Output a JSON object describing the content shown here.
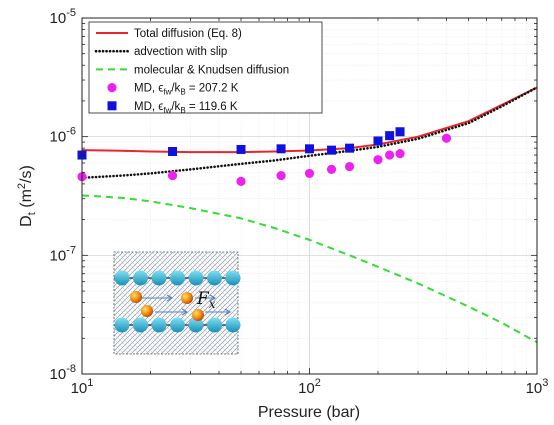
{
  "chart_data": {
    "type": "line",
    "xlabel": "Pressure (bar)",
    "ylabel": "D_t (m^2/s)",
    "xscale": "log",
    "yscale": "log",
    "xlim": [
      10,
      1000
    ],
    "ylim": [
      1e-08,
      1e-05
    ],
    "grid": true,
    "legend_position": "top-left",
    "x_ticks": [
      {
        "value": 10,
        "base": "10",
        "exp": "1"
      },
      {
        "value": 100,
        "base": "10",
        "exp": "2"
      },
      {
        "value": 1000,
        "base": "10",
        "exp": "3"
      }
    ],
    "y_ticks": [
      {
        "value": 1e-08,
        "base": "10",
        "exp": "-8"
      },
      {
        "value": 1e-07,
        "base": "10",
        "exp": "-7"
      },
      {
        "value": 1e-06,
        "base": "10",
        "exp": "-6"
      },
      {
        "value": 1e-05,
        "base": "10",
        "exp": "-5"
      }
    ],
    "series": [
      {
        "name": "Total diffusion (Eq. 8)",
        "kind": "line",
        "color": "#e8262b",
        "points": [
          [
            10,
            7.7e-07
          ],
          [
            15,
            7.6e-07
          ],
          [
            20,
            7.5e-07
          ],
          [
            30,
            7.4e-07
          ],
          [
            50,
            7.4e-07
          ],
          [
            70,
            7.5e-07
          ],
          [
            100,
            7.65e-07
          ],
          [
            150,
            8e-07
          ],
          [
            200,
            8.6e-07
          ],
          [
            300,
            1e-06
          ],
          [
            500,
            1.35e-06
          ],
          [
            700,
            1.85e-06
          ],
          [
            1000,
            2.6e-06
          ]
        ]
      },
      {
        "name": "advection with slip",
        "kind": "dotted",
        "color": "#111111",
        "points": [
          [
            10,
            4.5e-07
          ],
          [
            15,
            4.7e-07
          ],
          [
            20,
            4.9e-07
          ],
          [
            30,
            5.3e-07
          ],
          [
            50,
            5.9e-07
          ],
          [
            70,
            6.3e-07
          ],
          [
            100,
            6.9e-07
          ],
          [
            150,
            7.6e-07
          ],
          [
            200,
            8.2e-07
          ],
          [
            300,
            9.6e-07
          ],
          [
            500,
            1.3e-06
          ],
          [
            700,
            1.8e-06
          ],
          [
            1000,
            2.6e-06
          ]
        ]
      },
      {
        "name": "molecular & Knudsen diffusion",
        "kind": "dashed",
        "color": "#33dd33",
        "points": [
          [
            10,
            3.2e-07
          ],
          [
            15,
            3.05e-07
          ],
          [
            20,
            2.85e-07
          ],
          [
            30,
            2.5e-07
          ],
          [
            50,
            2.05e-07
          ],
          [
            70,
            1.7e-07
          ],
          [
            100,
            1.35e-07
          ],
          [
            150,
            1e-07
          ],
          [
            200,
            8e-08
          ],
          [
            300,
            5.8e-08
          ],
          [
            500,
            3.7e-08
          ],
          [
            700,
            2.7e-08
          ],
          [
            1000,
            1.85e-08
          ]
        ]
      },
      {
        "name": "MD, εfw/kB = 207.2 K",
        "legend_text": "MD, ϵ",
        "legend_sub": "fw",
        "legend_mid": "/k",
        "legend_sub2": "B",
        "legend_tail": " = 207.2 K",
        "kind": "circle",
        "color": "#ee22ee",
        "points": [
          [
            10,
            4.6e-07
          ],
          [
            25,
            4.7e-07
          ],
          [
            50,
            4.2e-07
          ],
          [
            75,
            4.7e-07
          ],
          [
            100,
            4.9e-07
          ],
          [
            125,
            5.3e-07
          ],
          [
            150,
            5.6e-07
          ],
          [
            200,
            6.4e-07
          ],
          [
            225,
            7e-07
          ],
          [
            250,
            7.2e-07
          ],
          [
            400,
            9.7e-07
          ]
        ]
      },
      {
        "name": "MD, εfw/kB = 119.6 K",
        "legend_text": "MD, ϵ",
        "legend_sub": "fw",
        "legend_mid": "/k",
        "legend_sub2": "B",
        "legend_tail": " = 119.6 K",
        "kind": "square",
        "color": "#1111dd",
        "points": [
          [
            10,
            7e-07
          ],
          [
            25,
            7.5e-07
          ],
          [
            50,
            7.8e-07
          ],
          [
            75,
            7.9e-07
          ],
          [
            100,
            7.9e-07
          ],
          [
            125,
            7.7e-07
          ],
          [
            150,
            8e-07
          ],
          [
            200,
            9.2e-07
          ],
          [
            225,
            1.02e-06
          ],
          [
            250,
            1.1e-06
          ]
        ]
      }
    ],
    "inset": {
      "label": "F",
      "label_sub": "x"
    }
  }
}
